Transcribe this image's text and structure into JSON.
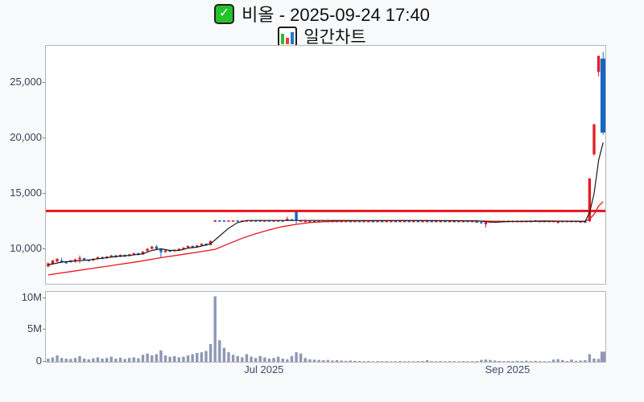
{
  "header": {
    "title": "비올 - 2025-09-24 17:40",
    "subtitle": "일간차트",
    "stock_name": "비올",
    "datetime": "2025-09-24 17:40",
    "check_glyph": "✓",
    "icons": [
      "checkbox-icon",
      "bar-chart-icon"
    ]
  },
  "colors": {
    "up": "#e01f26",
    "down": "#1565c4",
    "reference_line": "#e8151c",
    "ma_short": "#1a1a1a",
    "ma_long": "#e8151c",
    "volume_bar": "#8e97b5",
    "axis_label": "#3a4258",
    "plot_border": "#b5b5b5",
    "page_bg": "#f8f9fa",
    "plot_bg": "#ffffff"
  },
  "chart_data": {
    "type": "candlestick_with_volume",
    "title": "비올 - 2025-09-24 17:40",
    "subtitle": "일간차트",
    "price_axis": {
      "range": [
        6900,
        28300
      ],
      "ticks": [
        {
          "value": 25000,
          "label": "25,000"
        },
        {
          "value": 20000,
          "label": "20,000"
        },
        {
          "value": 15000,
          "label": "15,000"
        },
        {
          "value": 10000,
          "label": "10,000"
        }
      ]
    },
    "volume_axis": {
      "range_millions": [
        0,
        11
      ],
      "ticks": [
        {
          "value": 10,
          "label": "10M"
        },
        {
          "value": 5,
          "label": "5M"
        },
        {
          "value": 0,
          "label": "0"
        }
      ]
    },
    "x_ticks": [
      {
        "index": 48,
        "label": "Jul 2025"
      },
      {
        "index": 102,
        "label": "Sep 2025"
      }
    ],
    "reference_line_price": 13450,
    "candles": [
      [
        8450,
        8800,
        8400,
        8750,
        "r"
      ],
      [
        8700,
        9050,
        8650,
        9000,
        "r"
      ],
      [
        8900,
        9200,
        8850,
        9150,
        "r"
      ],
      [
        9000,
        9250,
        8800,
        8850,
        "b"
      ],
      [
        8900,
        8950,
        8700,
        8750,
        "b"
      ],
      [
        8850,
        9050,
        8800,
        9000,
        "r"
      ],
      [
        8950,
        9150,
        8800,
        9100,
        "r"
      ],
      [
        9100,
        9450,
        8750,
        9250,
        "r"
      ],
      [
        9200,
        9250,
        9000,
        9050,
        "b"
      ],
      [
        9050,
        9100,
        8900,
        8950,
        "b"
      ],
      [
        9000,
        9200,
        8950,
        9150,
        "r"
      ],
      [
        9150,
        9350,
        9100,
        9300,
        "r"
      ],
      [
        9300,
        9350,
        9100,
        9150,
        "b"
      ],
      [
        9200,
        9400,
        9150,
        9350,
        "r"
      ],
      [
        9350,
        9500,
        9300,
        9450,
        "r"
      ],
      [
        9450,
        9500,
        9250,
        9300,
        "b"
      ],
      [
        9350,
        9550,
        9300,
        9500,
        "r"
      ],
      [
        9500,
        9550,
        9300,
        9350,
        "b"
      ],
      [
        9400,
        9600,
        9350,
        9550,
        "r"
      ],
      [
        9550,
        9700,
        9500,
        9650,
        "r"
      ],
      [
        9650,
        9700,
        9450,
        9500,
        "b"
      ],
      [
        9550,
        9850,
        9500,
        9800,
        "r"
      ],
      [
        9850,
        10100,
        9800,
        10050,
        "r"
      ],
      [
        10050,
        10300,
        10000,
        10250,
        "r"
      ],
      [
        10250,
        10400,
        10000,
        10050,
        "b"
      ],
      [
        10000,
        10050,
        9300,
        9750,
        "b"
      ],
      [
        9750,
        9950,
        9700,
        9900,
        "r"
      ],
      [
        9900,
        9950,
        9750,
        9800,
        "b"
      ],
      [
        9850,
        10000,
        9800,
        9950,
        "r"
      ],
      [
        9950,
        10100,
        9900,
        10050,
        "r"
      ],
      [
        10050,
        10200,
        10000,
        10150,
        "r"
      ],
      [
        10150,
        10350,
        10100,
        10300,
        "r"
      ],
      [
        10300,
        10350,
        10100,
        10150,
        "b"
      ],
      [
        10200,
        10400,
        10150,
        10350,
        "r"
      ],
      [
        10350,
        10550,
        10300,
        10500,
        "r"
      ],
      [
        10500,
        10550,
        10300,
        10350,
        "b"
      ],
      [
        10400,
        10800,
        10350,
        10750,
        "r"
      ],
      [
        12550,
        12650,
        12450,
        12600,
        "r"
      ],
      [
        12600,
        12600,
        12550,
        12550,
        "b"
      ],
      [
        12600,
        12600,
        12550,
        12550,
        "b"
      ],
      [
        12550,
        12600,
        12550,
        12600,
        "r"
      ],
      [
        12550,
        12600,
        12550,
        12600,
        "r"
      ],
      [
        12600,
        12600,
        12550,
        12550,
        "b"
      ],
      [
        12550,
        12600,
        12550,
        12600,
        "r"
      ],
      [
        12550,
        12600,
        12550,
        12600,
        "r"
      ],
      [
        12550,
        12600,
        12550,
        12600,
        "r"
      ],
      [
        12600,
        12600,
        12550,
        12550,
        "b"
      ],
      [
        12550,
        12600,
        12550,
        12600,
        "r"
      ],
      [
        12550,
        12600,
        12550,
        12600,
        "r"
      ],
      [
        12600,
        12600,
        12550,
        12550,
        "b"
      ],
      [
        12550,
        12600,
        12550,
        12600,
        "r"
      ],
      [
        12550,
        12600,
        12550,
        12600,
        "r"
      ],
      [
        12600,
        12600,
        12550,
        12550,
        "b"
      ],
      [
        12600,
        12950,
        12550,
        12750,
        "r"
      ],
      [
        12700,
        12750,
        12600,
        12650,
        "b"
      ],
      [
        13400,
        13450,
        12300,
        12600,
        "b"
      ],
      [
        12550,
        12650,
        12500,
        12600,
        "r"
      ],
      [
        12550,
        12600,
        12500,
        12550,
        "r"
      ],
      [
        12500,
        12600,
        12500,
        12550,
        "r"
      ],
      [
        12550,
        12600,
        12500,
        12550,
        "b"
      ],
      [
        12500,
        12600,
        12500,
        12550,
        "r"
      ],
      [
        12550,
        12600,
        12500,
        12550,
        "b"
      ],
      [
        12500,
        12600,
        12500,
        12550,
        "r"
      ],
      [
        12550,
        12600,
        12500,
        12550,
        "r"
      ],
      [
        12550,
        12600,
        12500,
        12550,
        "b"
      ],
      [
        12500,
        12600,
        12500,
        12550,
        "r"
      ],
      [
        12550,
        12600,
        12500,
        12550,
        "r"
      ],
      [
        12550,
        12600,
        12500,
        12550,
        "b"
      ],
      [
        12500,
        12600,
        12500,
        12550,
        "r"
      ],
      [
        12550,
        12600,
        12500,
        12550,
        "b"
      ],
      [
        12500,
        12600,
        12500,
        12550,
        "r"
      ],
      [
        12550,
        12600,
        12500,
        12550,
        "r"
      ],
      [
        12550,
        12600,
        12500,
        12550,
        "b"
      ],
      [
        12500,
        12600,
        12500,
        12550,
        "r"
      ],
      [
        12550,
        12600,
        12500,
        12550,
        "b"
      ],
      [
        12500,
        12600,
        12500,
        12550,
        "r"
      ],
      [
        12550,
        12600,
        12500,
        12550,
        "r"
      ],
      [
        12550,
        12600,
        12500,
        12550,
        "b"
      ],
      [
        12500,
        12600,
        12500,
        12550,
        "r"
      ],
      [
        12550,
        12600,
        12500,
        12550,
        "r"
      ],
      [
        12550,
        12600,
        12500,
        12550,
        "b"
      ],
      [
        12500,
        12600,
        12500,
        12550,
        "r"
      ],
      [
        12550,
        12600,
        12500,
        12550,
        "b"
      ],
      [
        12500,
        12600,
        12500,
        12550,
        "r"
      ],
      [
        12550,
        12600,
        12500,
        12550,
        "r"
      ],
      [
        12550,
        12600,
        12500,
        12550,
        "b"
      ],
      [
        12500,
        12600,
        12500,
        12550,
        "r"
      ],
      [
        12550,
        12600,
        12500,
        12550,
        "r"
      ],
      [
        12550,
        12600,
        12500,
        12550,
        "b"
      ],
      [
        12500,
        12600,
        12500,
        12550,
        "r"
      ],
      [
        12550,
        12600,
        12500,
        12550,
        "b"
      ],
      [
        12500,
        12600,
        12500,
        12550,
        "r"
      ],
      [
        12550,
        12600,
        12500,
        12550,
        "r"
      ],
      [
        12550,
        12600,
        12500,
        12550,
        "b"
      ],
      [
        12500,
        12600,
        12500,
        12550,
        "r"
      ],
      [
        12500,
        12550,
        12400,
        12450,
        "b"
      ],
      [
        12450,
        12500,
        12300,
        12350,
        "b"
      ],
      [
        12250,
        12500,
        11950,
        12450,
        "r"
      ],
      [
        12450,
        12550,
        12400,
        12500,
        "r"
      ],
      [
        12500,
        12550,
        12500,
        12550,
        "r"
      ],
      [
        12550,
        12600,
        12500,
        12550,
        "b"
      ],
      [
        12500,
        12600,
        12500,
        12550,
        "r"
      ],
      [
        12550,
        12600,
        12500,
        12550,
        "b"
      ],
      [
        12500,
        12600,
        12500,
        12550,
        "r"
      ],
      [
        12550,
        12600,
        12500,
        12550,
        "r"
      ],
      [
        12500,
        12600,
        12500,
        12550,
        "b"
      ],
      [
        12550,
        12600,
        12500,
        12550,
        "r"
      ],
      [
        12550,
        12600,
        12500,
        12550,
        "b"
      ],
      [
        12600,
        12650,
        12450,
        12500,
        "b"
      ],
      [
        12500,
        12600,
        12500,
        12550,
        "r"
      ],
      [
        12550,
        12600,
        12500,
        12550,
        "b"
      ],
      [
        12500,
        12600,
        12500,
        12550,
        "r"
      ],
      [
        12550,
        12600,
        12500,
        12550,
        "r"
      ],
      [
        12500,
        12550,
        12300,
        12500,
        "r"
      ],
      [
        12500,
        12600,
        12450,
        12550,
        "b"
      ],
      [
        12550,
        12600,
        12500,
        12550,
        "r"
      ],
      [
        12500,
        12600,
        12450,
        12550,
        "r"
      ],
      [
        12550,
        12600,
        12500,
        12550,
        "b"
      ],
      [
        12500,
        12550,
        12450,
        12500,
        "r"
      ],
      [
        12500,
        12550,
        12450,
        12500,
        "b"
      ],
      [
        12540,
        16380,
        12450,
        16380,
        "r"
      ],
      [
        18550,
        21250,
        18400,
        21250,
        "r"
      ],
      [
        25950,
        27400,
        25550,
        27400,
        "r"
      ],
      [
        27150,
        27750,
        20300,
        20500,
        "b"
      ]
    ],
    "volumes_millions": [
      0.5,
      0.7,
      1.0,
      0.6,
      0.5,
      0.45,
      0.6,
      0.9,
      0.5,
      0.4,
      0.55,
      0.7,
      0.5,
      0.6,
      0.8,
      0.5,
      0.65,
      0.45,
      0.6,
      0.7,
      0.55,
      1.1,
      1.3,
      1.0,
      1.2,
      1.8,
      1.0,
      0.8,
      0.9,
      0.7,
      0.8,
      1.0,
      1.2,
      1.4,
      1.5,
      1.7,
      2.8,
      10.3,
      3.4,
      2.2,
      1.5,
      1.1,
      0.9,
      0.7,
      1.2,
      0.8,
      0.6,
      0.9,
      0.7,
      0.5,
      0.6,
      0.8,
      0.5,
      0.4,
      0.9,
      1.5,
      1.3,
      0.6,
      0.4,
      0.35,
      0.3,
      0.25,
      0.3,
      0.2,
      0.25,
      0.2,
      0.15,
      0.2,
      0.15,
      0.12,
      0.1,
      0.12,
      0.08,
      0.1,
      0.09,
      0.1,
      0.08,
      0.1,
      0.12,
      0.09,
      0.1,
      0.08,
      0.1,
      0.12,
      0.25,
      0.1,
      0.09,
      0.1,
      0.08,
      0.1,
      0.09,
      0.08,
      0.1,
      0.09,
      0.1,
      0.12,
      0.3,
      0.35,
      0.3,
      0.2,
      0.12,
      0.1,
      0.12,
      0.1,
      0.15,
      0.12,
      0.18,
      0.1,
      0.15,
      0.1,
      0.08,
      0.1,
      0.35,
      0.42,
      0.28,
      0.12,
      0.35,
      0.15,
      0.2,
      0.25,
      1.2,
      0.5,
      0.45,
      1.6
    ],
    "ma_short": {
      "name": "short-ma-line",
      "points": [
        [
          0,
          8600
        ],
        [
          3,
          8850
        ],
        [
          6,
          8950
        ],
        [
          9,
          9050
        ],
        [
          12,
          9200
        ],
        [
          15,
          9350
        ],
        [
          18,
          9450
        ],
        [
          21,
          9600
        ],
        [
          23,
          9900
        ],
        [
          25,
          10050
        ],
        [
          27,
          9900
        ],
        [
          29,
          9900
        ],
        [
          31,
          10100
        ],
        [
          33,
          10200
        ],
        [
          35,
          10400
        ],
        [
          36,
          10500
        ],
        [
          38,
          11200
        ],
        [
          40,
          11900
        ],
        [
          42,
          12400
        ],
        [
          44,
          12600
        ],
        [
          48,
          12600
        ],
        [
          60,
          12600
        ],
        [
          80,
          12580
        ],
        [
          95,
          12560
        ],
        [
          99,
          12430
        ],
        [
          102,
          12500
        ],
        [
          110,
          12550
        ],
        [
          119,
          12520
        ],
        [
          120,
          13280
        ],
        [
          121,
          15020
        ],
        [
          122,
          18000
        ],
        [
          123,
          19600
        ]
      ]
    },
    "ma_long": {
      "name": "long-ma-line",
      "points": [
        [
          0,
          7700
        ],
        [
          5,
          8000
        ],
        [
          10,
          8300
        ],
        [
          15,
          8600
        ],
        [
          20,
          8900
        ],
        [
          25,
          9250
        ],
        [
          30,
          9550
        ],
        [
          34,
          9800
        ],
        [
          37,
          10000
        ],
        [
          40,
          10500
        ],
        [
          43,
          11000
        ],
        [
          46,
          11400
        ],
        [
          49,
          11750
        ],
        [
          52,
          12050
        ],
        [
          55,
          12250
        ],
        [
          58,
          12400
        ],
        [
          62,
          12500
        ],
        [
          66,
          12550
        ],
        [
          70,
          12570
        ],
        [
          80,
          12580
        ],
        [
          90,
          12580
        ],
        [
          100,
          12520
        ],
        [
          105,
          12500
        ],
        [
          110,
          12520
        ],
        [
          115,
          12530
        ],
        [
          119,
          12520
        ],
        [
          120,
          12715
        ],
        [
          121,
          13150
        ],
        [
          122,
          13890
        ],
        [
          123,
          14290
        ]
      ]
    }
  }
}
